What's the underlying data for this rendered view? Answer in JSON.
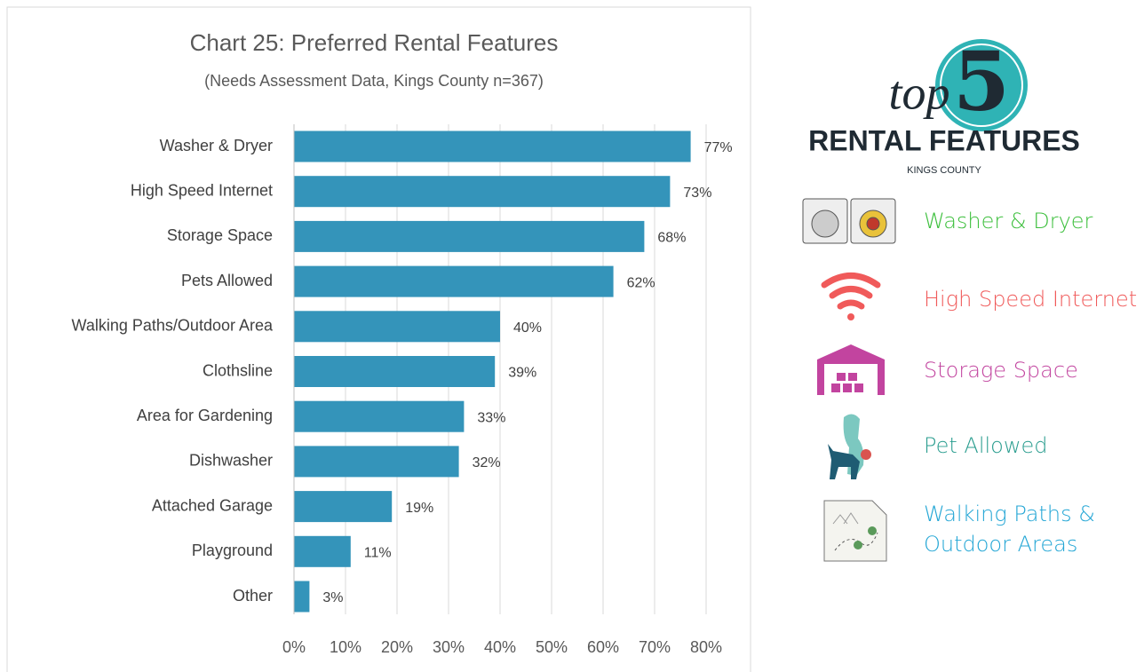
{
  "chart_data": {
    "type": "bar",
    "orientation": "horizontal",
    "title": "Chart 25: Preferred Rental Features",
    "subtitle": "(Needs Assessment Data, Kings County n=367)",
    "categories": [
      "Washer & Dryer",
      "High Speed Internet",
      "Storage Space",
      "Pets Allowed",
      "Walking Paths/Outdoor Area",
      "Clothsline",
      "Area for Gardening",
      "Dishwasher",
      "Attached Garage",
      "Playground",
      "Other"
    ],
    "values": [
      77,
      73,
      68,
      62,
      40,
      39,
      33,
      32,
      19,
      11,
      3
    ],
    "value_labels": [
      "77%",
      "73%",
      "68%",
      "62%",
      "40%",
      "39%",
      "33%",
      "32%",
      "19%",
      "11%",
      "3%"
    ],
    "color": "#3494ba",
    "xlim": [
      0,
      80
    ],
    "xticks": [
      {
        "value": 0,
        "label": "0%"
      },
      {
        "value": 10,
        "label": "10%"
      },
      {
        "value": 20,
        "label": "20%"
      },
      {
        "value": 30,
        "label": "30%"
      },
      {
        "value": 40,
        "label": "40%"
      },
      {
        "value": 50,
        "label": "50%"
      },
      {
        "value": 60,
        "label": "60%"
      },
      {
        "value": 70,
        "label": "70%"
      },
      {
        "value": 80,
        "label": "80%"
      }
    ],
    "grid": true
  },
  "infographic": {
    "top": "top",
    "number": "5",
    "heading": "RENTAL FEATURES",
    "subheading": "KINGS COUNTY",
    "items": [
      {
        "lines": [
          "Washer & Dryer"
        ],
        "color": "#3cbf3c"
      },
      {
        "lines": [
          "High Speed Internet"
        ],
        "color": "#f05a5a"
      },
      {
        "lines": [
          "Storage Space"
        ],
        "color": "#c2449f"
      },
      {
        "lines": [
          "Pet Allowed"
        ],
        "color": "#2a9d8f"
      },
      {
        "lines": [
          "Walking Paths &",
          "Outdoor Areas"
        ],
        "color": "#23a6d5"
      }
    ]
  }
}
